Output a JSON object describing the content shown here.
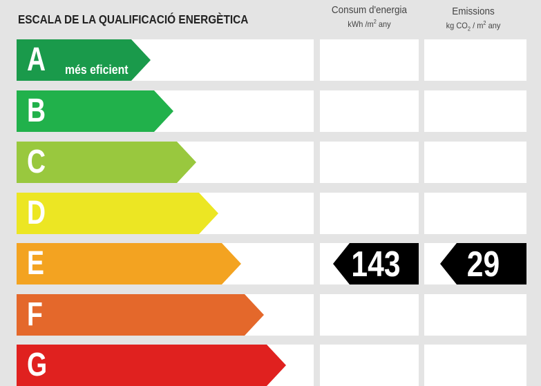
{
  "header": {
    "title": "ESCALA DE LA QUALIFICACIÓ ENERGÈTICA",
    "col_energy": {
      "line1": "Consum d'energia",
      "unit_a": "kWh /m",
      "unit_sup": "2",
      "unit_b": " any"
    },
    "col_emissions": {
      "line1": "Emissions",
      "unit_a": "kg CO",
      "unit_sub": "2",
      "unit_mid": " / m",
      "unit_sup": "2",
      "unit_b": " any"
    }
  },
  "rows": [
    {
      "letter": "A",
      "sublabel": "més eficient",
      "color": "#1a9a4b"
    },
    {
      "letter": "B",
      "sublabel": "",
      "color": "#21b14b"
    },
    {
      "letter": "C",
      "sublabel": "",
      "color": "#99c83e"
    },
    {
      "letter": "D",
      "sublabel": "",
      "color": "#ece623"
    },
    {
      "letter": "E",
      "sublabel": "",
      "color": "#f3a321"
    },
    {
      "letter": "F",
      "sublabel": "",
      "color": "#e4682b"
    },
    {
      "letter": "G",
      "sublabel": "",
      "color": "#e0211f"
    }
  ],
  "rating": {
    "class": "E",
    "energy_value": "143",
    "emissions_value": "29",
    "marker_color": "#000000"
  }
}
